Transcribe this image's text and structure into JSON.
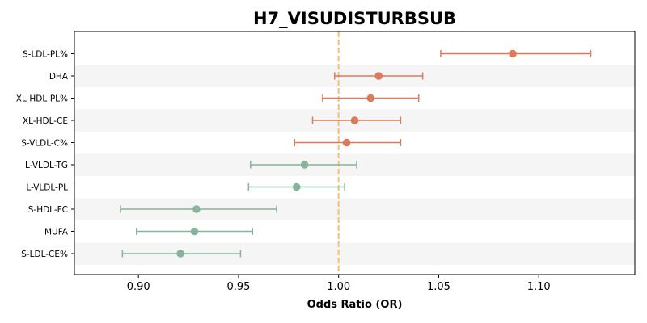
{
  "chart_data": {
    "type": "forest",
    "title": "H7_VISUDISTURBSUB",
    "xlabel": "Odds Ratio (OR)",
    "xlim": [
      0.868,
      1.148
    ],
    "xticks": [
      "0.90",
      "0.95",
      "1.00",
      "1.05",
      "1.10"
    ],
    "xtick_values": [
      0.9,
      0.95,
      1.0,
      1.05,
      1.1
    ],
    "reference_line": 1.0,
    "colors": {
      "positive": "#db7b5b",
      "negative": "#86b59b",
      "reference": "#f1c47f",
      "band": "#f5f5f5"
    },
    "rows": [
      {
        "label": "S-LDL-PL%",
        "or": 1.087,
        "lo": 1.051,
        "hi": 1.126
      },
      {
        "label": "DHA",
        "or": 1.02,
        "lo": 0.998,
        "hi": 1.042
      },
      {
        "label": "XL-HDL-PL%",
        "or": 1.016,
        "lo": 0.992,
        "hi": 1.04
      },
      {
        "label": "XL-HDL-CE",
        "or": 1.008,
        "lo": 0.987,
        "hi": 1.031
      },
      {
        "label": "S-VLDL-C%",
        "or": 1.004,
        "lo": 0.978,
        "hi": 1.031
      },
      {
        "label": "L-VLDL-TG",
        "or": 0.983,
        "lo": 0.956,
        "hi": 1.009
      },
      {
        "label": "L-VLDL-PL",
        "or": 0.979,
        "lo": 0.955,
        "hi": 1.003
      },
      {
        "label": "S-HDL-FC",
        "or": 0.929,
        "lo": 0.891,
        "hi": 0.969
      },
      {
        "label": "MUFA",
        "or": 0.928,
        "lo": 0.899,
        "hi": 0.957
      },
      {
        "label": "S-LDL-CE%",
        "or": 0.921,
        "lo": 0.892,
        "hi": 0.951
      }
    ]
  }
}
